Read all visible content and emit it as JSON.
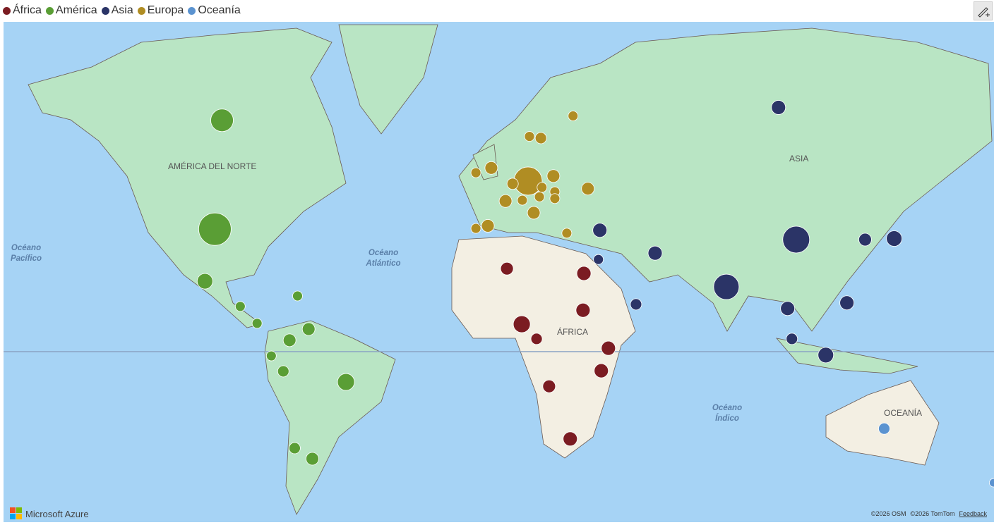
{
  "legend": {
    "groups": [
      {
        "name": "África",
        "color": "#7b1c22"
      },
      {
        "name": "América",
        "color": "#5a9e35"
      },
      {
        "name": "Asia",
        "color": "#2b3467"
      },
      {
        "name": "Europa",
        "color": "#b08d23"
      },
      {
        "name": "Oceanía",
        "color": "#5b93d0"
      }
    ]
  },
  "map": {
    "type": "bubble-map",
    "points": [
      {
        "group": 0,
        "lon": 3.0,
        "lat": 28.0,
        "size": 81
      },
      {
        "group": 0,
        "lon": 30.0,
        "lat": 26.5,
        "size": 100
      },
      {
        "group": 0,
        "lon": 29.7,
        "lat": 14.4,
        "size": 100
      },
      {
        "group": 0,
        "lon": 8.2,
        "lat": 9.6,
        "size": 144
      },
      {
        "group": 0,
        "lon": 13.4,
        "lat": 4.5,
        "size": 64
      },
      {
        "group": 0,
        "lon": 38.6,
        "lat": 1.2,
        "size": 100
      },
      {
        "group": 0,
        "lon": 36.1,
        "lat": -6.7,
        "size": 100
      },
      {
        "group": 0,
        "lon": 17.8,
        "lat": -12.1,
        "size": 81
      },
      {
        "group": 0,
        "lon": 25.2,
        "lat": -29.3,
        "size": 100
      },
      {
        "group": 1,
        "lon": -97.0,
        "lat": 62.8,
        "size": 256
      },
      {
        "group": 1,
        "lon": -99.5,
        "lat": 39.5,
        "size": 529
      },
      {
        "group": 1,
        "lon": -103.0,
        "lat": 24.0,
        "size": 121
      },
      {
        "group": 1,
        "lon": -70.5,
        "lat": 19.2,
        "size": 49
      },
      {
        "group": 1,
        "lon": -90.6,
        "lat": 15.7,
        "size": 49
      },
      {
        "group": 1,
        "lon": -84.7,
        "lat": 9.9,
        "size": 49
      },
      {
        "group": 1,
        "lon": -66.6,
        "lat": 7.9,
        "size": 81
      },
      {
        "group": 1,
        "lon": -73.3,
        "lat": 4.0,
        "size": 81
      },
      {
        "group": 1,
        "lon": -79.7,
        "lat": -1.5,
        "size": 49
      },
      {
        "group": 1,
        "lon": -75.5,
        "lat": -6.9,
        "size": 64
      },
      {
        "group": 1,
        "lon": -53.5,
        "lat": -10.6,
        "size": 144
      },
      {
        "group": 1,
        "lon": -71.5,
        "lat": -32.1,
        "size": 64
      },
      {
        "group": 1,
        "lon": -65.3,
        "lat": -35.2,
        "size": 81
      },
      {
        "group": 2,
        "lon": 98.3,
        "lat": 64.8,
        "size": 100
      },
      {
        "group": 2,
        "lon": 35.6,
        "lat": 39.2,
        "size": 100
      },
      {
        "group": 2,
        "lon": 35.1,
        "lat": 30.8,
        "size": 49
      },
      {
        "group": 2,
        "lon": 55.0,
        "lat": 32.7,
        "size": 100
      },
      {
        "group": 2,
        "lon": 48.3,
        "lat": 16.4,
        "size": 64
      },
      {
        "group": 2,
        "lon": 80.0,
        "lat": 22.2,
        "size": 324
      },
      {
        "group": 2,
        "lon": 104.5,
        "lat": 36.6,
        "size": 361
      },
      {
        "group": 2,
        "lon": 128.7,
        "lat": 36.6,
        "size": 81
      },
      {
        "group": 2,
        "lon": 138.9,
        "lat": 36.9,
        "size": 121
      },
      {
        "group": 2,
        "lon": 101.5,
        "lat": 15.0,
        "size": 100
      },
      {
        "group": 2,
        "lon": 122.3,
        "lat": 16.9,
        "size": 100
      },
      {
        "group": 2,
        "lon": 103.0,
        "lat": 4.5,
        "size": 64
      },
      {
        "group": 2,
        "lon": 114.9,
        "lat": -1.2,
        "size": 121
      },
      {
        "group": 3,
        "lon": 26.2,
        "lat": 63.5,
        "size": 49
      },
      {
        "group": 3,
        "lon": 10.9,
        "lat": 60.1,
        "size": 49
      },
      {
        "group": 3,
        "lon": 14.9,
        "lat": 59.8,
        "size": 64
      },
      {
        "group": 3,
        "lon": -7.9,
        "lat": 53.1,
        "size": 49
      },
      {
        "group": 3,
        "lon": -2.5,
        "lat": 54.1,
        "size": 81
      },
      {
        "group": 3,
        "lon": 10.4,
        "lat": 51.3,
        "size": 400
      },
      {
        "group": 3,
        "lon": 19.3,
        "lat": 52.4,
        "size": 81
      },
      {
        "group": 3,
        "lon": 5.0,
        "lat": 50.7,
        "size": 64
      },
      {
        "group": 3,
        "lon": 15.3,
        "lat": 49.9,
        "size": 49
      },
      {
        "group": 3,
        "lon": 19.8,
        "lat": 48.9,
        "size": 49
      },
      {
        "group": 3,
        "lon": 31.4,
        "lat": 49.6,
        "size": 81
      },
      {
        "group": 3,
        "lon": 14.4,
        "lat": 47.7,
        "size": 49
      },
      {
        "group": 3,
        "lon": 19.8,
        "lat": 47.3,
        "size": 49
      },
      {
        "group": 3,
        "lon": 2.5,
        "lat": 46.7,
        "size": 81
      },
      {
        "group": 3,
        "lon": 8.4,
        "lat": 46.9,
        "size": 49
      },
      {
        "group": 3,
        "lon": 12.4,
        "lat": 43.8,
        "size": 81
      },
      {
        "group": 3,
        "lon": -3.7,
        "lat": 40.4,
        "size": 81
      },
      {
        "group": 3,
        "lon": -7.9,
        "lat": 39.7,
        "size": 49
      },
      {
        "group": 3,
        "lon": 24.0,
        "lat": 38.4,
        "size": 49
      },
      {
        "group": 4,
        "lon": 135.4,
        "lat": -26.1,
        "size": 64
      },
      {
        "group": 4,
        "lon": 173.8,
        "lat": -41.8,
        "size": 36
      }
    ]
  },
  "labels": {
    "north_america": "AMÉRICA DEL NORTE",
    "asia": "ASIA",
    "africa": "ÁFRICA",
    "oceania": "OCEANÍA",
    "pacific": "Océano Pacífico",
    "atlantic": "Océano Atlántico",
    "indian": "Océano Índico"
  },
  "footer": {
    "brand": "Microsoft Azure",
    "osm": "©2026 OSM",
    "tomtom": "©2026 TomTom",
    "feedback": "Feedback"
  }
}
